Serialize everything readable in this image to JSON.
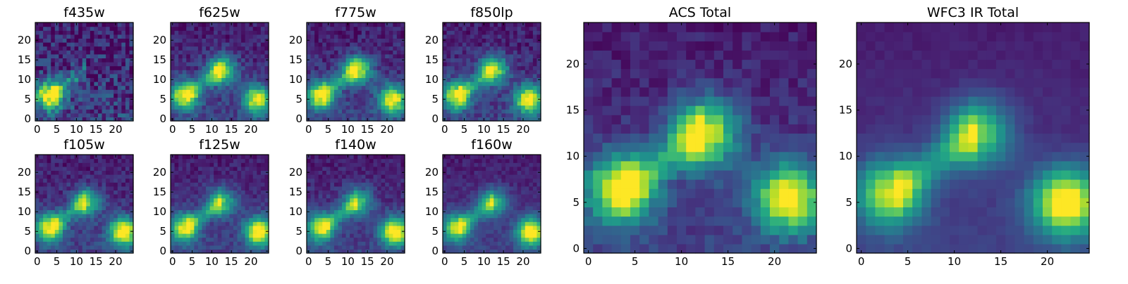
{
  "chart_data": [
    {
      "type": "heatmap",
      "title": "f435w",
      "xlabel": "",
      "ylabel": "",
      "xlim": [
        0,
        24
      ],
      "ylim": [
        0,
        24
      ],
      "colormap": "viridis",
      "xticks": [
        "0",
        "5",
        "10",
        "15",
        "20"
      ],
      "yticks": [
        "0",
        "5",
        "10",
        "15",
        "20"
      ],
      "features": [
        {
          "x": 3,
          "y": 6,
          "peak": 0.9
        }
      ],
      "noise": 0.35
    },
    {
      "type": "heatmap",
      "title": "f625w",
      "xlabel": "",
      "ylabel": "",
      "xlim": [
        0,
        24
      ],
      "ylim": [
        0,
        24
      ],
      "colormap": "viridis",
      "xticks": [
        "0",
        "5",
        "10",
        "15",
        "20"
      ],
      "yticks": [
        "0",
        "5",
        "10",
        "15",
        "20"
      ],
      "features": [
        {
          "x": 3,
          "y": 6,
          "peak": 0.85
        },
        {
          "x": 12.5,
          "y": 12.5,
          "peak": 0.75
        },
        {
          "x": 21.5,
          "y": 5,
          "peak": 0.8
        }
      ],
      "noise": 0.2
    },
    {
      "type": "heatmap",
      "title": "f775w",
      "xlabel": "",
      "ylabel": "",
      "xlim": [
        0,
        24
      ],
      "ylim": [
        0,
        24
      ],
      "colormap": "viridis",
      "xticks": [
        "0",
        "5",
        "10",
        "15",
        "20"
      ],
      "yticks": [
        "0",
        "5",
        "10",
        "15",
        "20"
      ],
      "features": [
        {
          "x": 3,
          "y": 6,
          "peak": 0.85
        },
        {
          "x": 12.5,
          "y": 12.5,
          "peak": 0.8
        },
        {
          "x": 21.5,
          "y": 5,
          "peak": 0.85
        }
      ],
      "noise": 0.2
    },
    {
      "type": "heatmap",
      "title": "f850lp",
      "xlabel": "",
      "ylabel": "",
      "xlim": [
        0,
        24
      ],
      "ylim": [
        0,
        24
      ],
      "colormap": "viridis",
      "xticks": [
        "0",
        "5",
        "10",
        "15",
        "20"
      ],
      "yticks": [
        "0",
        "5",
        "10",
        "15",
        "20"
      ],
      "features": [
        {
          "x": 3,
          "y": 6,
          "peak": 0.85
        },
        {
          "x": 12.5,
          "y": 12.5,
          "peak": 0.75
        },
        {
          "x": 21.5,
          "y": 5,
          "peak": 0.9
        }
      ],
      "noise": 0.2
    },
    {
      "type": "heatmap",
      "title": "f105w",
      "xlabel": "",
      "ylabel": "",
      "xlim": [
        0,
        24
      ],
      "ylim": [
        0,
        24
      ],
      "colormap": "viridis",
      "xticks": [
        "0",
        "5",
        "10",
        "15",
        "20"
      ],
      "yticks": [
        "0",
        "5",
        "10",
        "15",
        "20"
      ],
      "features": [
        {
          "x": 3,
          "y": 6,
          "peak": 0.85
        },
        {
          "x": 12.5,
          "y": 12.5,
          "peak": 0.65
        },
        {
          "x": 22,
          "y": 5,
          "peak": 0.95
        }
      ],
      "noise": 0.18
    },
    {
      "type": "heatmap",
      "title": "f125w",
      "xlabel": "",
      "ylabel": "",
      "xlim": [
        0,
        24
      ],
      "ylim": [
        0,
        24
      ],
      "colormap": "viridis",
      "xticks": [
        "0",
        "5",
        "10",
        "15",
        "20"
      ],
      "yticks": [
        "0",
        "5",
        "10",
        "15",
        "20"
      ],
      "features": [
        {
          "x": 3,
          "y": 6,
          "peak": 0.8
        },
        {
          "x": 12.5,
          "y": 12.5,
          "peak": 0.6
        },
        {
          "x": 22,
          "y": 5,
          "peak": 0.95
        }
      ],
      "noise": 0.15
    },
    {
      "type": "heatmap",
      "title": "f140w",
      "xlabel": "",
      "ylabel": "",
      "xlim": [
        0,
        24
      ],
      "ylim": [
        0,
        24
      ],
      "colormap": "viridis",
      "xticks": [
        "0",
        "5",
        "10",
        "15",
        "20"
      ],
      "yticks": [
        "0",
        "5",
        "10",
        "15",
        "20"
      ],
      "features": [
        {
          "x": 3,
          "y": 6,
          "peak": 0.8
        },
        {
          "x": 12.5,
          "y": 12.5,
          "peak": 0.6
        },
        {
          "x": 22,
          "y": 5,
          "peak": 0.95
        }
      ],
      "noise": 0.15
    },
    {
      "type": "heatmap",
      "title": "f160w",
      "xlabel": "",
      "ylabel": "",
      "xlim": [
        0,
        24
      ],
      "ylim": [
        0,
        24
      ],
      "colormap": "viridis",
      "xticks": [
        "0",
        "5",
        "10",
        "15",
        "20"
      ],
      "yticks": [
        "0",
        "5",
        "10",
        "15",
        "20"
      ],
      "features": [
        {
          "x": 3,
          "y": 6,
          "peak": 0.75
        },
        {
          "x": 12.5,
          "y": 12.5,
          "peak": 0.55
        },
        {
          "x": 22,
          "y": 5,
          "peak": 0.95
        }
      ],
      "noise": 0.12
    },
    {
      "type": "heatmap",
      "title": "ACS Total",
      "xlabel": "",
      "ylabel": "",
      "xlim": [
        0,
        24
      ],
      "ylim": [
        0,
        24
      ],
      "colormap": "viridis",
      "xticks": [
        "0",
        "5",
        "10",
        "15",
        "20"
      ],
      "yticks": [
        "0",
        "5",
        "10",
        "15",
        "20"
      ],
      "features": [
        {
          "x": 3.5,
          "y": 6.5,
          "peak": 0.92
        },
        {
          "x": 12.5,
          "y": 12.5,
          "peak": 0.85
        },
        {
          "x": 21.5,
          "y": 5.5,
          "peak": 0.92
        }
      ],
      "noise": 0.15
    },
    {
      "type": "heatmap",
      "title": "WFC3 IR Total",
      "xlabel": "",
      "ylabel": "",
      "xlim": [
        0,
        24
      ],
      "ylim": [
        0,
        24
      ],
      "colormap": "viridis",
      "xticks": [
        "0",
        "5",
        "10",
        "15",
        "20"
      ],
      "yticks": [
        "0",
        "5",
        "10",
        "15",
        "20"
      ],
      "features": [
        {
          "x": 3,
          "y": 6,
          "peak": 0.75
        },
        {
          "x": 12.5,
          "y": 12.5,
          "peak": 0.65
        },
        {
          "x": 22,
          "y": 5,
          "peak": 0.95
        }
      ],
      "noise": 0.05
    }
  ]
}
